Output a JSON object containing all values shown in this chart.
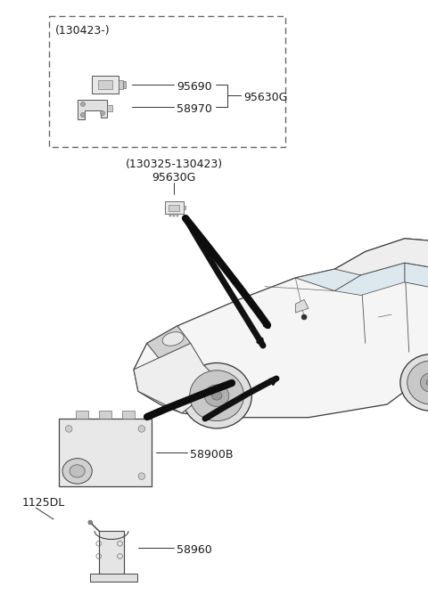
{
  "bg_color": "#ffffff",
  "figsize": [
    4.8,
    6.77
  ],
  "dpi": 100,
  "labels": {
    "130423_header": "(130423-)",
    "95690": "95690",
    "58970": "58970",
    "95630G_top": "95630G",
    "130325_header": "(130325-130423)",
    "95630G_mid": "95630G",
    "58900B": "58900B",
    "1125DL": "1125DL",
    "58960": "58960"
  },
  "font_size": 9,
  "line_color": "#333333",
  "text_color": "#1a1a1a"
}
